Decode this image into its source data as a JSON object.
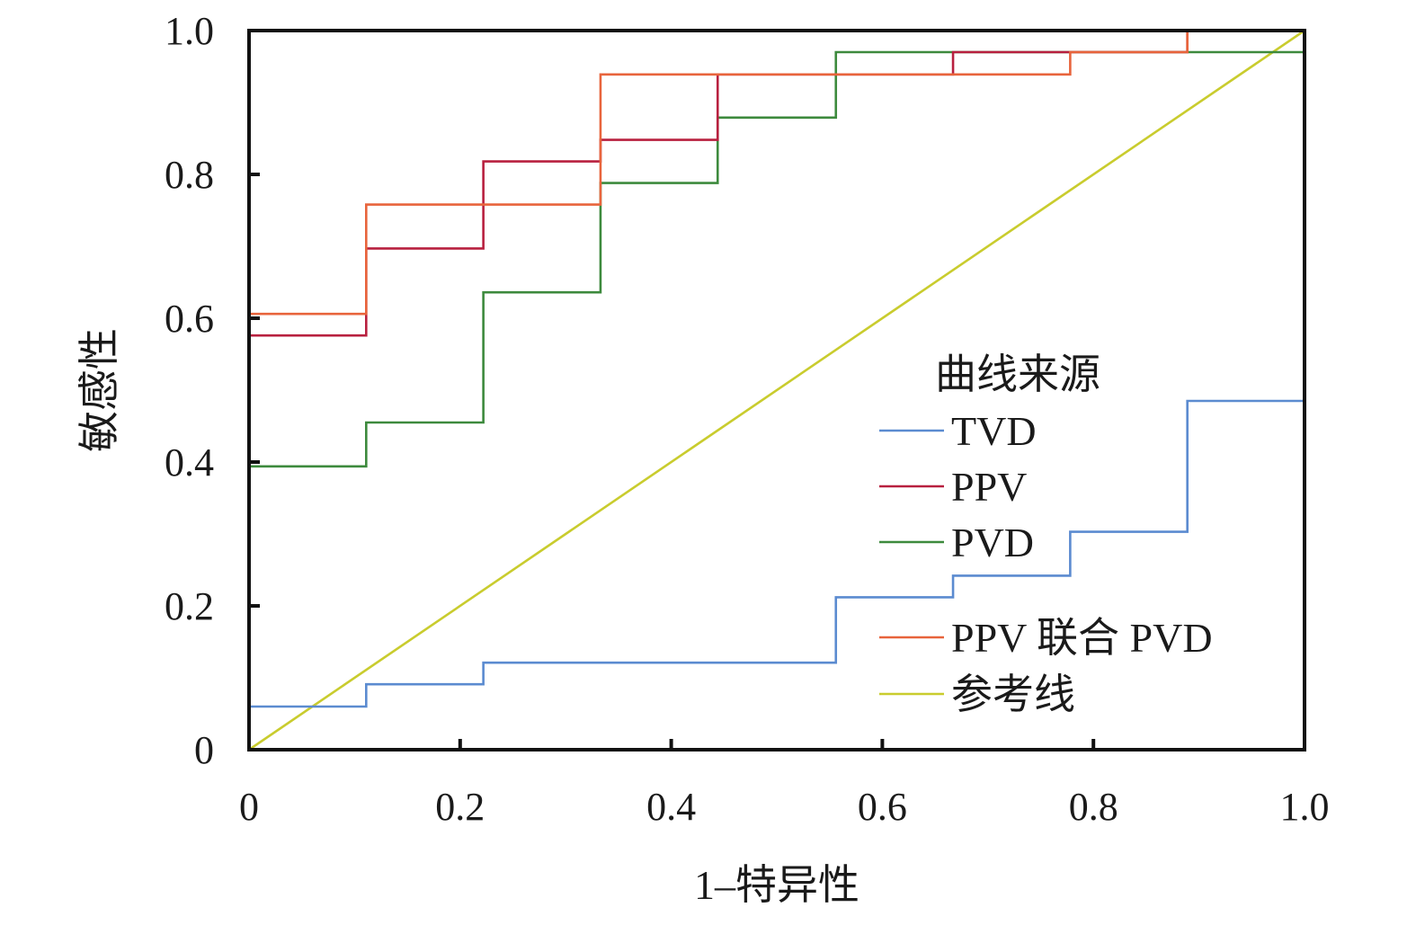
{
  "chart_data": {
    "type": "line",
    "xlabel": "1–特异性",
    "ylabel": "敏感性",
    "xlim": [
      0,
      1
    ],
    "ylim": [
      0,
      1
    ],
    "x_ticks": [
      "0",
      "0.2",
      "0.4",
      "0.6",
      "0.8",
      "1.0"
    ],
    "y_ticks": [
      "0",
      "0.2",
      "0.4",
      "0.6",
      "0.8",
      "1.0"
    ],
    "grid": false,
    "legend": {
      "title": "曲线来源",
      "position": "right"
    },
    "series": [
      {
        "name": "TVD",
        "color": "#5b8bd0",
        "points": [
          [
            0,
            0
          ],
          [
            0,
            0.06
          ],
          [
            0.111,
            0.06
          ],
          [
            0.111,
            0.091
          ],
          [
            0.222,
            0.091
          ],
          [
            0.222,
            0.121
          ],
          [
            0.556,
            0.121
          ],
          [
            0.556,
            0.212
          ],
          [
            0.667,
            0.212
          ],
          [
            0.667,
            0.242
          ],
          [
            0.778,
            0.242
          ],
          [
            0.778,
            0.303
          ],
          [
            0.889,
            0.303
          ],
          [
            0.889,
            0.485
          ],
          [
            1.0,
            0.485
          ],
          [
            1.0,
            1.0
          ]
        ]
      },
      {
        "name": "PPV",
        "color": "#b8203f",
        "points": [
          [
            0,
            0
          ],
          [
            0,
            0.576
          ],
          [
            0.111,
            0.576
          ],
          [
            0.111,
            0.697
          ],
          [
            0.222,
            0.697
          ],
          [
            0.222,
            0.818
          ],
          [
            0.333,
            0.818
          ],
          [
            0.333,
            0.848
          ],
          [
            0.444,
            0.848
          ],
          [
            0.444,
            0.939
          ],
          [
            0.667,
            0.939
          ],
          [
            0.667,
            0.97
          ],
          [
            0.889,
            0.97
          ],
          [
            0.889,
            1.0
          ],
          [
            1.0,
            1.0
          ]
        ]
      },
      {
        "name": "PVD",
        "color": "#3d8a3d",
        "points": [
          [
            0,
            0
          ],
          [
            0,
            0.394
          ],
          [
            0.111,
            0.394
          ],
          [
            0.111,
            0.455
          ],
          [
            0.222,
            0.455
          ],
          [
            0.222,
            0.636
          ],
          [
            0.333,
            0.636
          ],
          [
            0.333,
            0.788
          ],
          [
            0.444,
            0.788
          ],
          [
            0.444,
            0.879
          ],
          [
            0.556,
            0.879
          ],
          [
            0.556,
            0.97
          ],
          [
            1.0,
            0.97
          ],
          [
            1.0,
            1.0
          ]
        ]
      },
      {
        "name": "PPV 联合 PVD",
        "color": "#e8643c",
        "points": [
          [
            0,
            0
          ],
          [
            0,
            0.606
          ],
          [
            0.111,
            0.606
          ],
          [
            0.111,
            0.758
          ],
          [
            0.333,
            0.758
          ],
          [
            0.333,
            0.939
          ],
          [
            0.778,
            0.939
          ],
          [
            0.778,
            0.97
          ],
          [
            0.889,
            0.97
          ],
          [
            0.889,
            1.0
          ],
          [
            1.0,
            1.0
          ]
        ]
      },
      {
        "name": "参考线",
        "color": "#c9cc2e",
        "points": [
          [
            0,
            0
          ],
          [
            1.0,
            1.0
          ]
        ]
      }
    ]
  }
}
